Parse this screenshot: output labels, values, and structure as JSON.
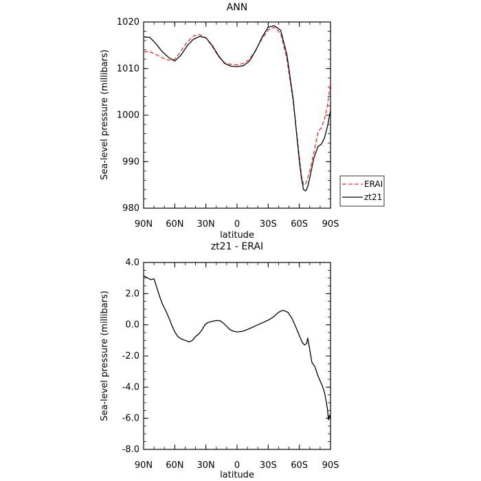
{
  "chart_data": [
    {
      "type": "line",
      "title": "ANN",
      "xlabel": "latitude",
      "ylabel": "Sea-level pressure (millibars)",
      "x_tick_labels": [
        "90N",
        "60N",
        "30N",
        "0",
        "30S",
        "60S",
        "90S"
      ],
      "y_tick_labels": [
        "980",
        "990",
        "1000",
        "1010",
        "1020"
      ],
      "xlim": [
        90,
        -90
      ],
      "ylim": [
        980,
        1020
      ],
      "legend": "right",
      "series": [
        {
          "name": "ERAI",
          "color": "#e8312a",
          "dash": "dashed",
          "x": [
            90,
            84,
            78,
            72,
            66,
            60,
            54,
            48,
            42,
            36,
            30,
            24,
            18,
            12,
            6,
            0,
            -6,
            -12,
            -18,
            -24,
            -30,
            -36,
            -42,
            -48,
            -54,
            -60,
            -62,
            -64,
            -66,
            -68,
            -70,
            -74,
            -78,
            -81,
            -84,
            -87,
            -90
          ],
          "y": [
            1013.6,
            1013.6,
            1013.0,
            1012.3,
            1011.8,
            1012.0,
            1013.8,
            1015.7,
            1017.0,
            1017.3,
            1016.6,
            1014.8,
            1012.6,
            1011.2,
            1010.9,
            1010.8,
            1011.1,
            1012.0,
            1014.0,
            1016.4,
            1018.3,
            1018.9,
            1017.5,
            1012.0,
            1003.0,
            991.0,
            987.0,
            985.0,
            985.2,
            986.5,
            988.0,
            992.0,
            996.5,
            997.2,
            999.0,
            1002.0,
            1007.0
          ]
        },
        {
          "name": "zt21",
          "color": "#000000",
          "dash": "solid",
          "x": [
            90,
            84,
            78,
            72,
            66,
            60,
            54,
            48,
            42,
            36,
            30,
            24,
            18,
            12,
            6,
            0,
            -6,
            -12,
            -18,
            -24,
            -30,
            -36,
            -42,
            -48,
            -54,
            -60,
            -62,
            -64,
            -66,
            -68,
            -70,
            -74,
            -78,
            -81,
            -84,
            -87,
            -90
          ],
          "y": [
            1016.8,
            1016.7,
            1015.3,
            1013.6,
            1012.4,
            1011.6,
            1012.9,
            1014.9,
            1016.3,
            1016.9,
            1016.6,
            1015.0,
            1012.8,
            1011.1,
            1010.5,
            1010.4,
            1010.6,
            1011.6,
            1013.9,
            1016.7,
            1018.9,
            1019.2,
            1018.2,
            1013.0,
            1003.5,
            990.0,
            986.5,
            984.0,
            983.7,
            984.6,
            986.5,
            990.8,
            993.3,
            993.7,
            995.0,
            997.5,
            1001.0
          ]
        }
      ]
    },
    {
      "type": "line",
      "title": "zt21 - ERAI",
      "xlabel": "latitude",
      "ylabel": "Sea-level pressure (millibars)",
      "x_tick_labels": [
        "90N",
        "60N",
        "30N",
        "0",
        "30S",
        "60S",
        "90S"
      ],
      "y_tick_labels": [
        "-8.0",
        "-6.0",
        "-4.0",
        "-2.0",
        "0.0",
        "2.0",
        "4.0"
      ],
      "xlim": [
        90,
        -90
      ],
      "ylim": [
        -8,
        4
      ],
      "series": [
        {
          "color": "#000000",
          "dash": "solid",
          "x": [
            90,
            86,
            83,
            80,
            78,
            75,
            72,
            69,
            66,
            63,
            60,
            57,
            54,
            50,
            46,
            43,
            40,
            37,
            34,
            31,
            28,
            25,
            22,
            19,
            16,
            13,
            10,
            7,
            4,
            1,
            -2,
            -5,
            -10,
            -15,
            -20,
            -25,
            -30,
            -35,
            -39,
            -42,
            -45,
            -49,
            -53,
            -57,
            -60,
            -63,
            -65,
            -67,
            -68,
            -70,
            -72,
            -75,
            -78,
            -80,
            -82,
            -84,
            -85,
            -86,
            -87,
            -88,
            -89,
            -90
          ],
          "y": [
            3.15,
            3.0,
            2.9,
            2.95,
            2.55,
            1.9,
            1.35,
            0.95,
            0.5,
            0.0,
            -0.45,
            -0.75,
            -0.9,
            -1.0,
            -1.1,
            -1.0,
            -0.75,
            -0.6,
            -0.35,
            0.0,
            0.15,
            0.2,
            0.25,
            0.28,
            0.25,
            0.1,
            -0.1,
            -0.3,
            -0.4,
            -0.45,
            -0.45,
            -0.42,
            -0.3,
            -0.15,
            0.0,
            0.15,
            0.3,
            0.5,
            0.75,
            0.88,
            0.92,
            0.8,
            0.4,
            -0.2,
            -0.7,
            -1.15,
            -1.3,
            -1.2,
            -0.85,
            -1.6,
            -2.4,
            -2.7,
            -3.3,
            -3.6,
            -3.9,
            -4.3,
            -4.6,
            -5.0,
            -5.4,
            -6.1,
            -5.8,
            -6.0
          ]
        }
      ]
    }
  ]
}
